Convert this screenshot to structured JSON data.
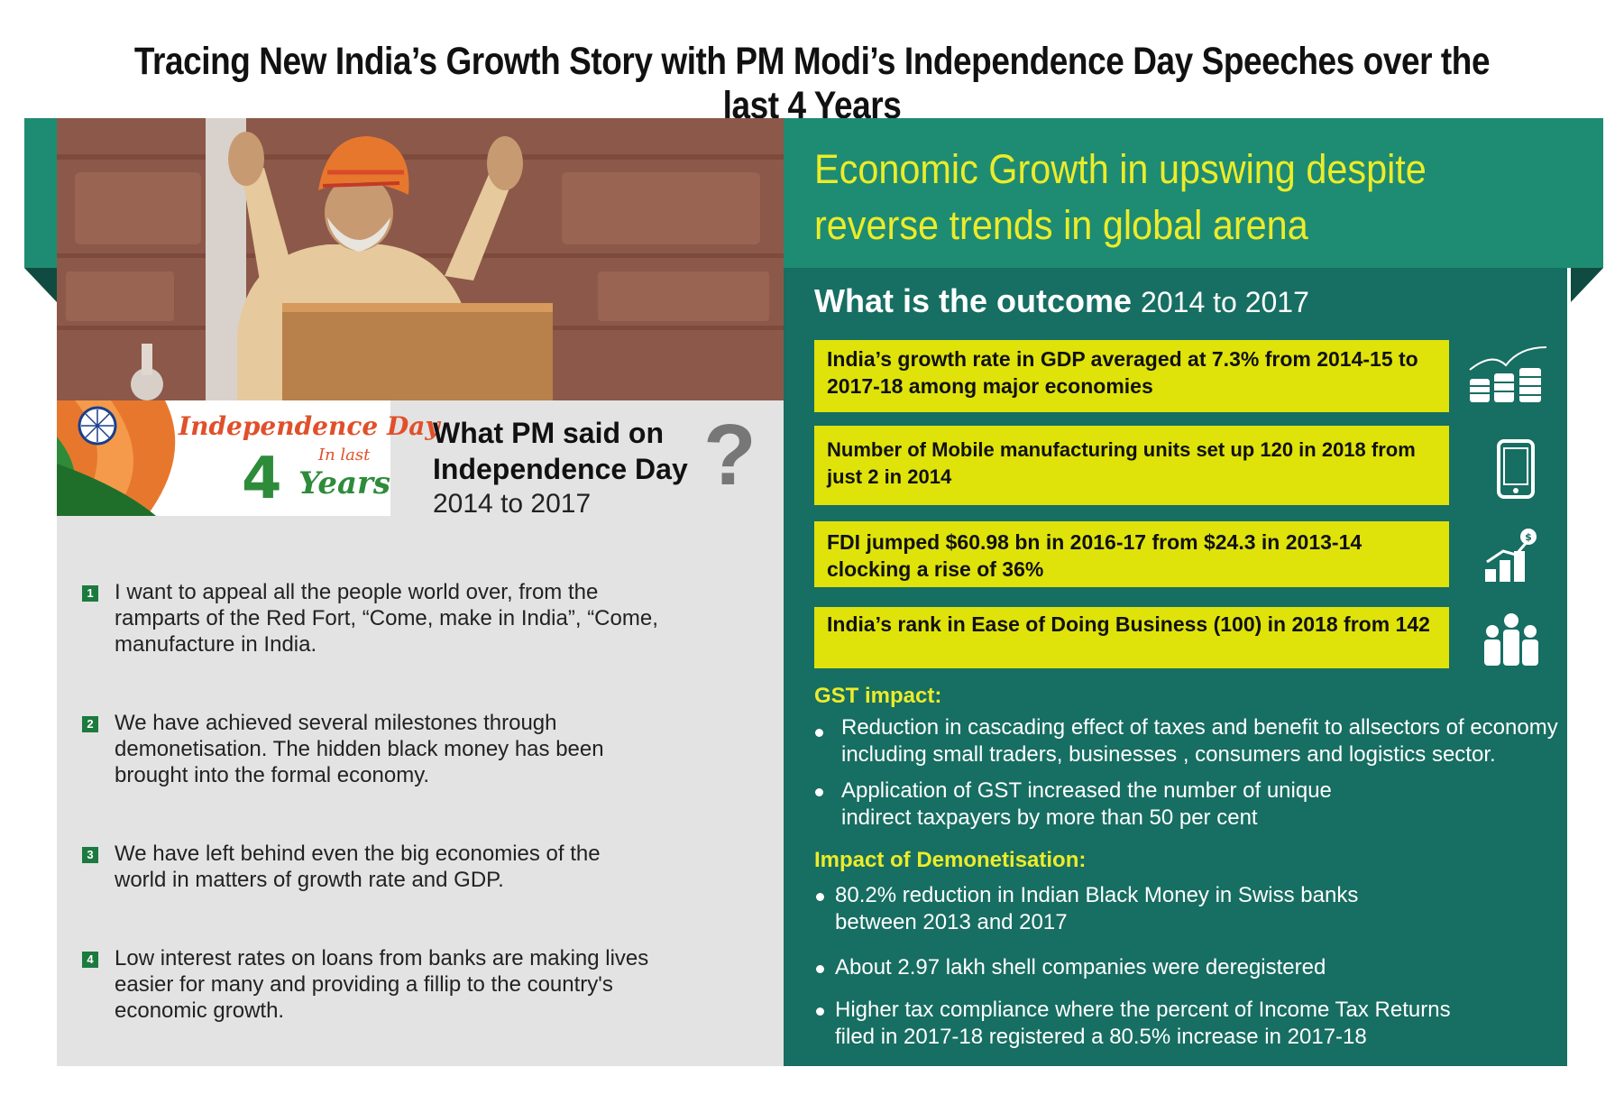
{
  "title": "Tracing New India’s Growth Story with PM Modi’s Independence Day Speeches over the last 4 Years",
  "left": {
    "badge": {
      "line1": "Independence Day",
      "line2": "In last",
      "number": "4",
      "line3": "Years"
    },
    "heading": "What PM said on Independence Day",
    "years": "2014 to 2017",
    "question_mark": "?",
    "quotes": [
      {
        "num": "1",
        "text": "I want to appeal all the people world over, from the ramparts of the Red Fort, “Come, make in India”, “Come, manufacture in India."
      },
      {
        "num": "2",
        "text": "We have achieved several milestones through demonetisation. The hidden black money has been brought into the formal economy."
      },
      {
        "num": "3",
        "text": "We have left behind even the big economies of the world in matters of growth rate and GDP."
      },
      {
        "num": "4",
        "text": "Low interest rates on loans from banks are making lives easier for many and providing a fillip to the country's economic growth."
      }
    ]
  },
  "right": {
    "title": "Economic Growth in upswing despite reverse trends in global arena",
    "outcome_heading": "What is the outcome",
    "outcome_years": "2014 to 2017",
    "stats": [
      {
        "text": "India’s growth rate in GDP averaged at 7.3% from 2014-15 to 2017-18 among major economies",
        "icon": "coins-icon"
      },
      {
        "text": "Number of Mobile manufacturing units set up 120 in 2018 from just 2 in 2014",
        "icon": "mobile-phone-icon"
      },
      {
        "text": "FDI jumped  $60.98 bn in 2016-17 from  $24.3 in 2013-14 clocking a rise of  36%",
        "icon": "bar-chart-growth-icon"
      },
      {
        "text": "India’s rank in Ease of Doing Business (100) in 2018 from 142",
        "icon": "people-group-icon"
      }
    ],
    "gst_title": "GST impact:",
    "gst_points": [
      "Reduction in cascading effect of taxes and benefit to allsectors of economy including small traders, businesses , consumers and logistics sector.",
      "Application of GST increased the number of unique indirect taxpayers by more than 50 per cent"
    ],
    "demo_title": "Impact of Demonetisation:",
    "demo_points": [
      "80.2% reduction in Indian Black Money in Swiss banks between 2013 and 2017",
      "About 2.97 lakh shell companies were deregistered",
      "Higher tax compliance where the percent of Income  Tax Returns filed in 2017-18 registered a 80.5% increase in 2017-18"
    ]
  },
  "colors": {
    "teal_dark": "#176e62",
    "teal_header": "#1e8c72",
    "yellow_box": "#dfe30a",
    "yellow_text": "#ecec2a",
    "saffron": "#e8772e",
    "green": "#2e8b3a"
  }
}
